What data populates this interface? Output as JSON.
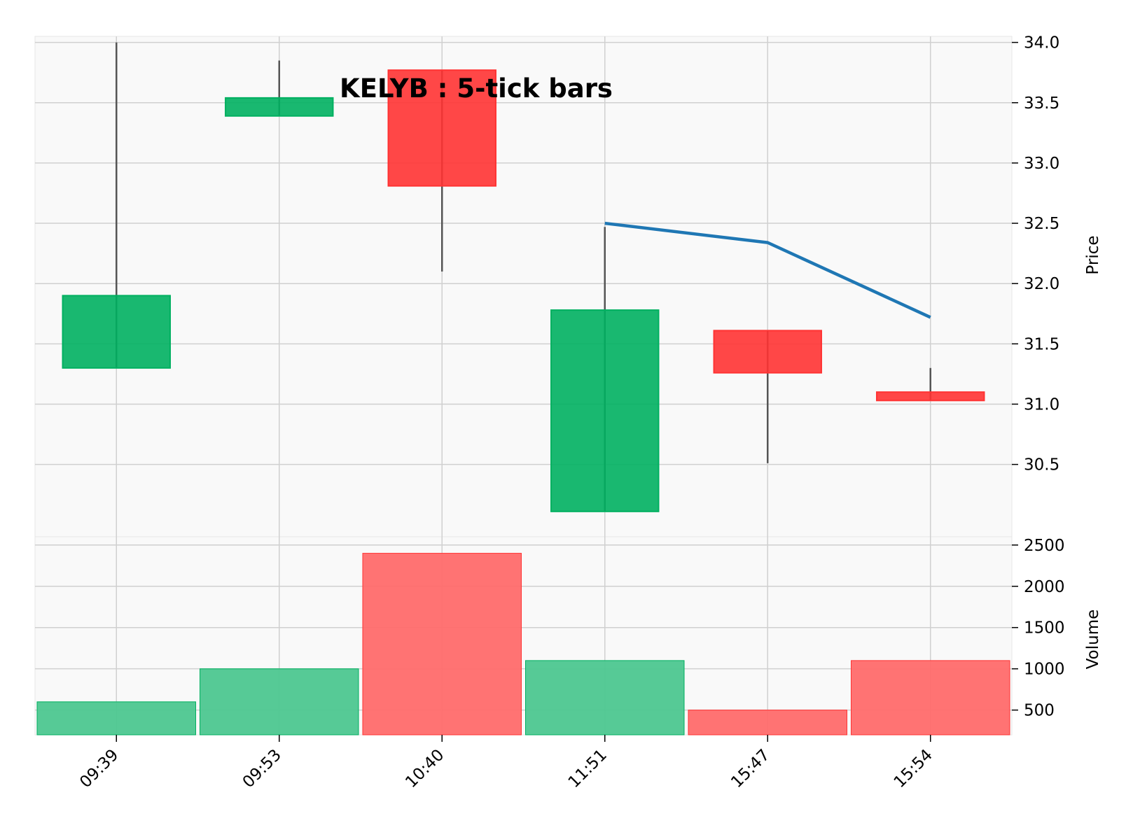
{
  "chart_data": {
    "type": "candlestick",
    "title": "KELYB : 5-tick bars",
    "categories": [
      "09:39",
      "09:53",
      "10:40",
      "11:51",
      "15:47",
      "15:54"
    ],
    "ohlc": [
      {
        "label": "09:39",
        "open": 31.3,
        "high": 34.0,
        "low": 31.3,
        "close": 31.9
      },
      {
        "label": "09:53",
        "open": 33.39,
        "high": 33.85,
        "low": 33.39,
        "close": 33.54
      },
      {
        "label": "10:40",
        "open": 33.77,
        "high": 33.77,
        "low": 32.1,
        "close": 32.81
      },
      {
        "label": "11:51",
        "open": 30.11,
        "high": 32.47,
        "low": 30.11,
        "close": 31.78
      },
      {
        "label": "15:47",
        "open": 31.61,
        "high": 31.61,
        "low": 30.51,
        "close": 31.26
      },
      {
        "label": "15:54",
        "open": 31.1,
        "high": 31.3,
        "low": 31.03,
        "close": 31.03
      }
    ],
    "overlay_line": {
      "x_index": [
        3,
        4,
        5
      ],
      "values": [
        32.5,
        32.34,
        31.72
      ],
      "color": "#1f77b4"
    },
    "volume": [
      600,
      1000,
      2400,
      1100,
      500,
      1100
    ],
    "price_axis": {
      "label": "Price",
      "ylim": [
        29.9,
        34.05
      ],
      "ticks": [
        "30.5",
        "31.0",
        "31.5",
        "32.0",
        "32.5",
        "33.0",
        "33.5",
        "34.0"
      ]
    },
    "volume_axis": {
      "label": "Volume",
      "ylim": [
        200,
        2600
      ],
      "ticks": [
        "500",
        "1000",
        "1500",
        "2000",
        "2500"
      ]
    },
    "grid": true,
    "colors": {
      "up": "#00b060",
      "down": "#ff3333",
      "volume_up": "#4dc790",
      "volume_down": "#ff6b6b",
      "wick": "#555555",
      "panel_bg": "#f9f9f9",
      "grid": "#d0d0d0"
    }
  }
}
